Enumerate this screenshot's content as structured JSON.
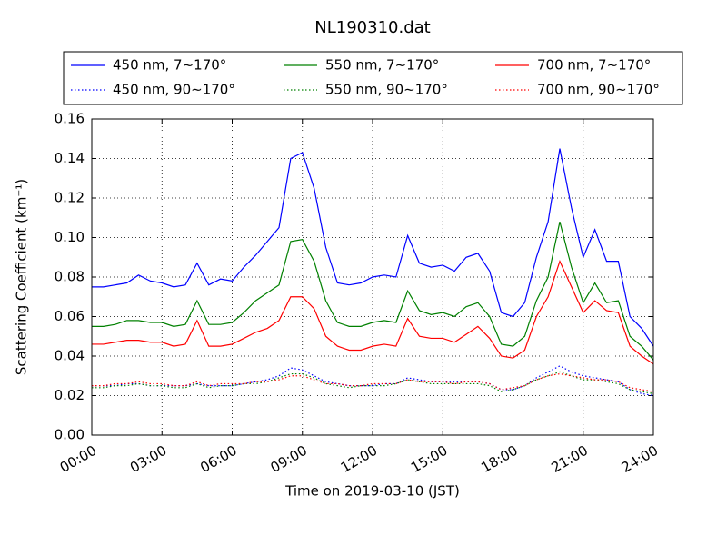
{
  "chart_data": {
    "type": "line",
    "title": "NL190310.dat",
    "x_label": "Time on 2019-03-10 (JST)",
    "y_label": "Scattering Coefficient (km⁻¹)",
    "x": [
      0,
      0.5,
      1,
      1.5,
      2,
      2.5,
      3,
      3.5,
      4,
      4.5,
      5,
      5.5,
      6,
      6.5,
      7,
      7.5,
      8,
      8.5,
      9,
      9.5,
      10,
      10.5,
      11,
      11.5,
      12,
      12.5,
      13,
      13.5,
      14,
      14.5,
      15,
      15.5,
      16,
      16.5,
      17,
      17.5,
      18,
      18.5,
      19,
      19.5,
      20,
      20.5,
      21,
      21.5,
      22,
      22.5,
      23,
      23.5,
      24
    ],
    "xlim": [
      0,
      24
    ],
    "xticks": [
      {
        "value": 0,
        "label": "00:00"
      },
      {
        "value": 3,
        "label": "03:00"
      },
      {
        "value": 6,
        "label": "06:00"
      },
      {
        "value": 9,
        "label": "09:00"
      },
      {
        "value": 12,
        "label": "12:00"
      },
      {
        "value": 15,
        "label": "15:00"
      },
      {
        "value": 18,
        "label": "18:00"
      },
      {
        "value": 21,
        "label": "21:00"
      },
      {
        "value": 24,
        "label": "24:00"
      }
    ],
    "ylim": [
      0,
      0.16
    ],
    "yticks": [
      {
        "value": 0,
        "label": "0.00"
      },
      {
        "value": 0.02,
        "label": "0.02"
      },
      {
        "value": 0.04,
        "label": "0.04"
      },
      {
        "value": 0.06,
        "label": "0.06"
      },
      {
        "value": 0.08,
        "label": "0.08"
      },
      {
        "value": 0.1,
        "label": "0.10"
      },
      {
        "value": 0.12,
        "label": "0.12"
      },
      {
        "value": 0.14,
        "label": "0.14"
      },
      {
        "value": 0.16,
        "label": "0.16"
      }
    ],
    "grid": true,
    "legend": "top",
    "series": [
      {
        "name": "450 nm, 7∼170°",
        "color": "#0000ff",
        "linestyle": "solid",
        "values": [
          0.075,
          0.075,
          0.076,
          0.077,
          0.081,
          0.078,
          0.077,
          0.075,
          0.076,
          0.087,
          0.076,
          0.079,
          0.078,
          0.085,
          0.091,
          0.098,
          0.105,
          0.14,
          0.143,
          0.125,
          0.095,
          0.077,
          0.076,
          0.077,
          0.08,
          0.081,
          0.08,
          0.101,
          0.087,
          0.085,
          0.086,
          0.083,
          0.09,
          0.092,
          0.083,
          0.062,
          0.06,
          0.067,
          0.09,
          0.108,
          0.145,
          0.115,
          0.09,
          0.104,
          0.088,
          0.088,
          0.06,
          0.054,
          0.045
        ]
      },
      {
        "name": "450 nm, 90∼170°",
        "color": "#0000ff",
        "linestyle": "dotted",
        "values": [
          0.025,
          0.025,
          0.025,
          0.026,
          0.026,
          0.025,
          0.025,
          0.025,
          0.025,
          0.026,
          0.025,
          0.025,
          0.025,
          0.026,
          0.027,
          0.028,
          0.03,
          0.034,
          0.033,
          0.03,
          0.027,
          0.026,
          0.025,
          0.025,
          0.025,
          0.026,
          0.026,
          0.029,
          0.028,
          0.027,
          0.027,
          0.027,
          0.027,
          0.027,
          0.026,
          0.023,
          0.023,
          0.025,
          0.029,
          0.032,
          0.035,
          0.032,
          0.03,
          0.029,
          0.028,
          0.027,
          0.023,
          0.021,
          0.02
        ]
      },
      {
        "name": "550 nm, 7∼170°",
        "color": "#008000",
        "linestyle": "solid",
        "values": [
          0.055,
          0.055,
          0.056,
          0.058,
          0.058,
          0.057,
          0.057,
          0.055,
          0.056,
          0.068,
          0.056,
          0.056,
          0.057,
          0.062,
          0.068,
          0.072,
          0.076,
          0.098,
          0.099,
          0.088,
          0.068,
          0.057,
          0.055,
          0.055,
          0.057,
          0.058,
          0.057,
          0.073,
          0.063,
          0.061,
          0.062,
          0.06,
          0.065,
          0.067,
          0.06,
          0.046,
          0.045,
          0.05,
          0.068,
          0.08,
          0.108,
          0.085,
          0.067,
          0.077,
          0.067,
          0.068,
          0.05,
          0.045,
          0.038
        ]
      },
      {
        "name": "550 nm, 90∼170°",
        "color": "#008000",
        "linestyle": "dotted",
        "values": [
          0.024,
          0.024,
          0.025,
          0.025,
          0.026,
          0.025,
          0.025,
          0.024,
          0.024,
          0.026,
          0.024,
          0.025,
          0.025,
          0.026,
          0.026,
          0.027,
          0.029,
          0.031,
          0.031,
          0.029,
          0.026,
          0.025,
          0.024,
          0.025,
          0.025,
          0.025,
          0.026,
          0.028,
          0.027,
          0.026,
          0.026,
          0.026,
          0.026,
          0.026,
          0.025,
          0.022,
          0.023,
          0.025,
          0.028,
          0.03,
          0.032,
          0.03,
          0.028,
          0.028,
          0.027,
          0.026,
          0.023,
          0.022,
          0.021
        ]
      },
      {
        "name": "700 nm, 7∼170°",
        "color": "#ff0000",
        "linestyle": "solid",
        "values": [
          0.046,
          0.046,
          0.047,
          0.048,
          0.048,
          0.047,
          0.047,
          0.045,
          0.046,
          0.058,
          0.045,
          0.045,
          0.046,
          0.049,
          0.052,
          0.054,
          0.058,
          0.07,
          0.07,
          0.064,
          0.05,
          0.045,
          0.043,
          0.043,
          0.045,
          0.046,
          0.045,
          0.059,
          0.05,
          0.049,
          0.049,
          0.047,
          0.051,
          0.055,
          0.049,
          0.04,
          0.039,
          0.043,
          0.06,
          0.07,
          0.088,
          0.075,
          0.062,
          0.068,
          0.063,
          0.062,
          0.045,
          0.04,
          0.036
        ]
      },
      {
        "name": "700 nm, 90∼170°",
        "color": "#ff0000",
        "linestyle": "dotted",
        "values": [
          0.025,
          0.025,
          0.026,
          0.026,
          0.027,
          0.026,
          0.026,
          0.025,
          0.025,
          0.027,
          0.025,
          0.026,
          0.026,
          0.026,
          0.027,
          0.027,
          0.028,
          0.03,
          0.03,
          0.028,
          0.026,
          0.026,
          0.025,
          0.025,
          0.026,
          0.026,
          0.026,
          0.028,
          0.027,
          0.027,
          0.027,
          0.026,
          0.027,
          0.027,
          0.026,
          0.023,
          0.024,
          0.025,
          0.028,
          0.03,
          0.031,
          0.03,
          0.029,
          0.028,
          0.028,
          0.027,
          0.024,
          0.023,
          0.022
        ]
      }
    ]
  }
}
